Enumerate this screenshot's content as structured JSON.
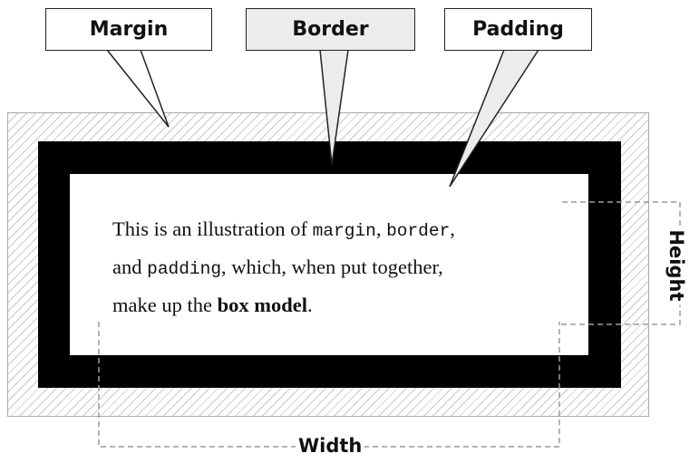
{
  "callouts": {
    "margin": "Margin",
    "border": "Border",
    "padding": "Padding"
  },
  "content": {
    "line1_text": "This is an illustration of ",
    "line1_code1": "margin",
    "line1_sep": ", ",
    "line1_code2": "border",
    "line1_end": ",",
    "line2_text": "and ",
    "line2_code": "padding",
    "line2_end": ", which, when put together,",
    "line3_text": "make up the ",
    "line3_bold": "box model",
    "line3_end": "."
  },
  "dimensions": {
    "width_label": "Width",
    "height_label": "Height"
  },
  "colors": {
    "border_fill": "#000000",
    "highlighted_callout_fill": "#ececec",
    "hatch": "#c9c9c9",
    "dashed_line": "#9a9a9a"
  }
}
